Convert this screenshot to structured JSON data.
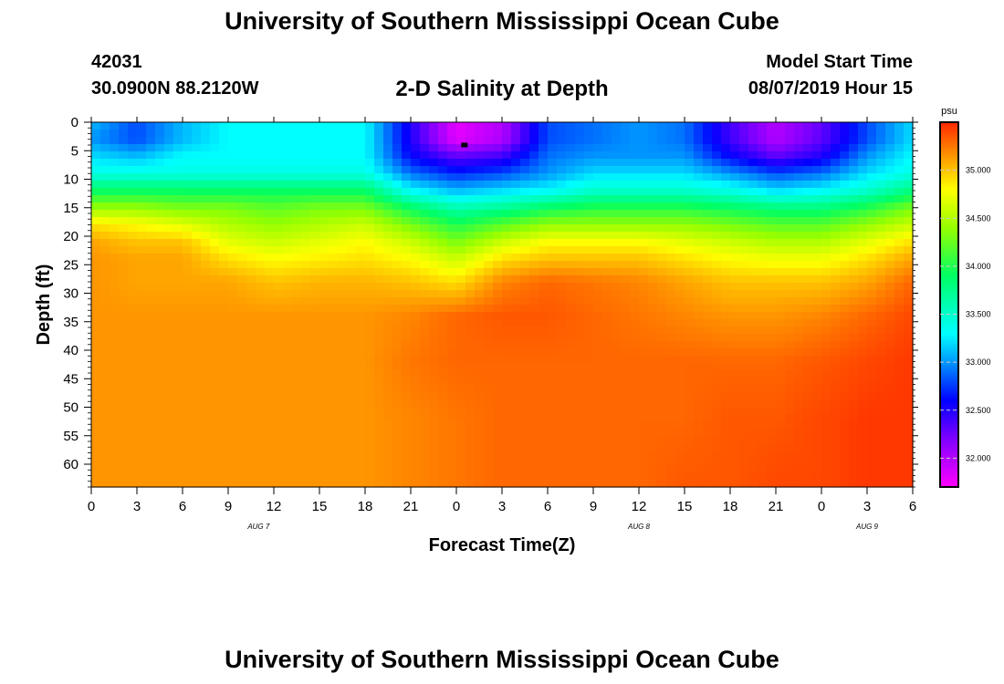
{
  "header": {
    "title": "University of Southern Mississippi Ocean Cube",
    "station_id": "42031",
    "coordinates": "30.0900N 88.2120W",
    "subtitle": "2-D Salinity at Depth",
    "model_start_label": "Model Start Time",
    "model_start_value": "08/07/2019 Hour 15"
  },
  "footer": {
    "title": "University of Southern Mississippi Ocean Cube"
  },
  "chart_data": {
    "type": "heatmap",
    "title": "2-D Salinity at Depth",
    "xlabel": "Forecast Time(Z)",
    "ylabel": "Depth (ft)",
    "x_range_hours": [
      0,
      54
    ],
    "x_tick_labels": [
      "0",
      "3",
      "6",
      "9",
      "12",
      "15",
      "18",
      "21",
      "0",
      "3",
      "6",
      "9",
      "12",
      "15",
      "18",
      "21",
      "0",
      "3",
      "6"
    ],
    "date_labels": [
      {
        "label": "AUG 7",
        "hour": 11
      },
      {
        "label": "AUG 8",
        "hour": 36
      },
      {
        "label": "AUG 9",
        "hour": 51
      }
    ],
    "ylim": [
      0,
      64
    ],
    "y_ticks": [
      0,
      5,
      10,
      15,
      20,
      25,
      30,
      35,
      40,
      45,
      50,
      55,
      60
    ],
    "colorbar": {
      "unit": "psu",
      "range": [
        31.7,
        35.5
      ],
      "ticks": [
        "32.000",
        "32.500",
        "33.000",
        "33.500",
        "34.000",
        "34.500",
        "35.000"
      ],
      "stops": [
        {
          "value": 31.7,
          "color": "#ff00ff"
        },
        {
          "value": 32.2,
          "color": "#8000ff"
        },
        {
          "value": 32.6,
          "color": "#0000ff"
        },
        {
          "value": 33.0,
          "color": "#0096ff"
        },
        {
          "value": 33.3,
          "color": "#00ffff"
        },
        {
          "value": 33.9,
          "color": "#00ff64"
        },
        {
          "value": 34.4,
          "color": "#96ff00"
        },
        {
          "value": 34.8,
          "color": "#ffff00"
        },
        {
          "value": 35.1,
          "color": "#ffa500"
        },
        {
          "value": 35.5,
          "color": "#ff2800"
        }
      ]
    },
    "salinity_profile": {
      "hours": [
        0,
        3,
        6,
        9,
        12,
        15,
        18,
        21,
        24,
        27,
        30,
        33,
        36,
        39,
        42,
        45,
        48,
        51,
        54
      ],
      "depths_ft": [
        0,
        3,
        6,
        9,
        12,
        15,
        18,
        21,
        24,
        28,
        34,
        42,
        52,
        64
      ],
      "values": [
        [
          33.1,
          32.8,
          33.1,
          33.3,
          33.3,
          33.3,
          33.3,
          32.5,
          31.8,
          32.0,
          32.8,
          32.9,
          33.0,
          32.9,
          32.4,
          32.0,
          32.3,
          32.8,
          33.2
        ],
        [
          33.0,
          32.8,
          33.1,
          33.3,
          33.3,
          33.3,
          33.3,
          32.5,
          31.8,
          32.0,
          32.8,
          32.9,
          33.0,
          32.9,
          32.4,
          32.0,
          32.3,
          32.8,
          33.2
        ],
        [
          33.2,
          33.1,
          33.3,
          33.3,
          33.3,
          33.3,
          33.3,
          32.6,
          32.3,
          32.4,
          32.9,
          33.0,
          33.0,
          33.0,
          32.6,
          32.3,
          32.5,
          33.0,
          33.3
        ],
        [
          33.4,
          33.4,
          33.4,
          33.4,
          33.4,
          33.4,
          33.4,
          32.9,
          32.7,
          32.8,
          33.0,
          33.2,
          33.2,
          33.2,
          33.0,
          32.8,
          32.9,
          33.2,
          33.4
        ],
        [
          33.9,
          33.9,
          33.9,
          33.9,
          33.9,
          33.9,
          33.9,
          33.3,
          33.1,
          33.2,
          33.3,
          33.5,
          33.5,
          33.5,
          33.4,
          33.2,
          33.3,
          33.5,
          33.8
        ],
        [
          34.4,
          34.4,
          34.3,
          34.3,
          34.2,
          34.3,
          34.3,
          33.9,
          33.6,
          33.7,
          33.9,
          34.0,
          34.0,
          34.0,
          33.9,
          33.8,
          33.8,
          34.0,
          34.3
        ],
        [
          34.9,
          34.8,
          34.7,
          34.5,
          34.4,
          34.5,
          34.6,
          34.3,
          34.0,
          34.2,
          34.4,
          34.4,
          34.4,
          34.4,
          34.3,
          34.2,
          34.2,
          34.4,
          34.6
        ],
        [
          35.1,
          35.0,
          35.0,
          34.7,
          34.6,
          34.7,
          34.8,
          34.6,
          34.3,
          34.6,
          34.8,
          34.8,
          34.8,
          34.7,
          34.6,
          34.5,
          34.5,
          34.7,
          34.9
        ],
        [
          35.15,
          35.1,
          35.1,
          34.9,
          34.8,
          34.85,
          34.9,
          34.8,
          34.6,
          34.9,
          35.0,
          35.0,
          35.0,
          34.9,
          34.8,
          34.75,
          34.75,
          34.9,
          35.1
        ],
        [
          35.15,
          35.1,
          35.1,
          35.1,
          35.0,
          35.05,
          35.05,
          35.0,
          34.9,
          35.2,
          35.3,
          35.25,
          35.2,
          35.1,
          35.0,
          35.0,
          35.0,
          35.1,
          35.3
        ],
        [
          35.15,
          35.15,
          35.15,
          35.15,
          35.15,
          35.15,
          35.15,
          35.2,
          35.3,
          35.35,
          35.35,
          35.3,
          35.25,
          35.2,
          35.15,
          35.15,
          35.2,
          35.3,
          35.4
        ],
        [
          35.15,
          35.15,
          35.15,
          35.15,
          35.15,
          35.15,
          35.15,
          35.25,
          35.3,
          35.3,
          35.3,
          35.3,
          35.3,
          35.3,
          35.3,
          35.3,
          35.35,
          35.4,
          35.45
        ],
        [
          35.15,
          35.15,
          35.15,
          35.15,
          35.15,
          35.15,
          35.15,
          35.2,
          35.25,
          35.3,
          35.3,
          35.3,
          35.3,
          35.3,
          35.35,
          35.35,
          35.4,
          35.45,
          35.45
        ],
        [
          35.15,
          35.15,
          35.15,
          35.15,
          35.15,
          35.15,
          35.15,
          35.2,
          35.25,
          35.3,
          35.3,
          35.3,
          35.3,
          35.35,
          35.35,
          35.4,
          35.4,
          35.45,
          35.45
        ]
      ]
    },
    "marker": {
      "hour": 24.5,
      "depth_ft": 4
    }
  }
}
